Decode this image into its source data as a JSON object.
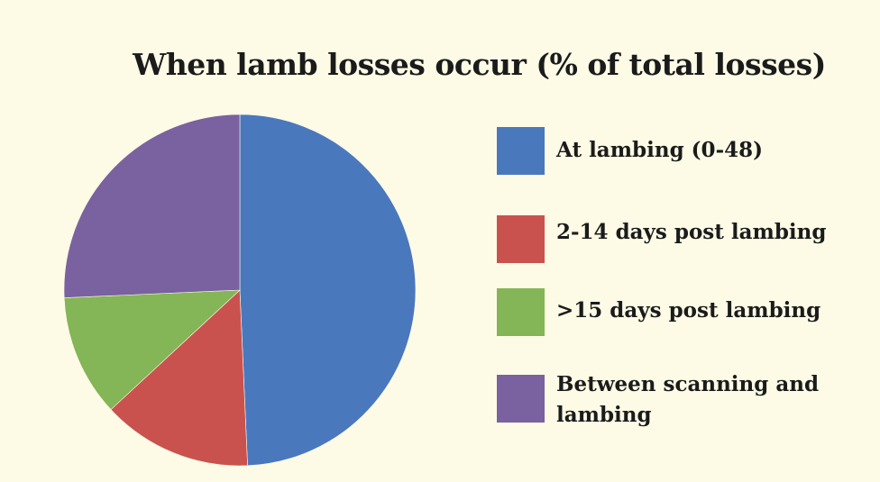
{
  "chart_data": {
    "type": "pie",
    "title": "When lamb losses occur (% of total losses)",
    "slices": [
      {
        "label": "At lambing (0-48)",
        "value": 49.3,
        "color": "#4a78bd"
      },
      {
        "label": "2-14 days post lambing",
        "value": 13.8,
        "color": "#c9524f"
      },
      {
        "label": ">15 days post lambing",
        "value": 11.2,
        "color": "#84b556"
      },
      {
        "label": "Between scanning and lambing",
        "value": 25.7,
        "color": "#7a61a0"
      }
    ],
    "legend_position": "right"
  }
}
